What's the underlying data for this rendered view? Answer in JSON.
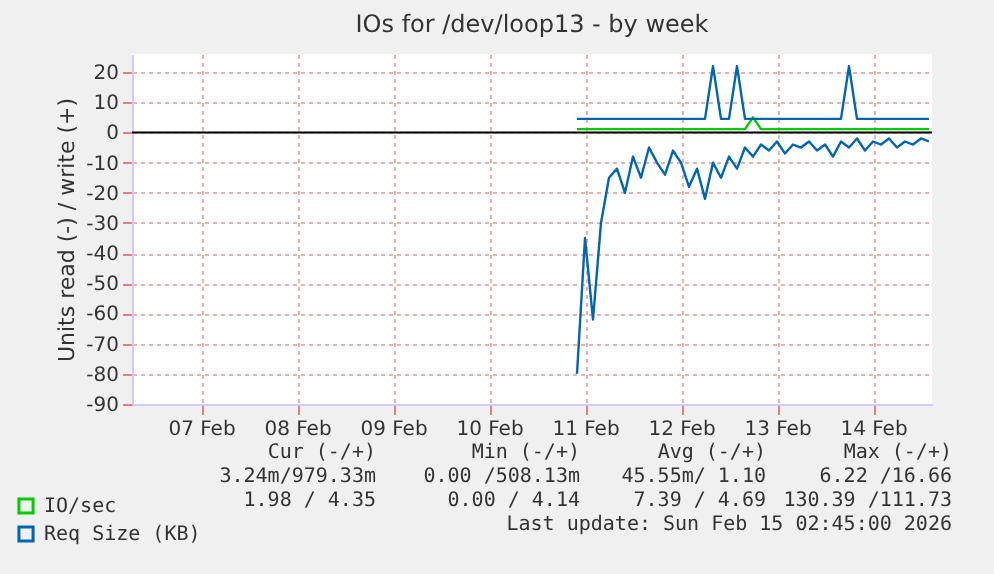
{
  "chart_data": {
    "type": "line",
    "title": "IOs for /dev/loop13 - by week",
    "ylabel": "Units read (-) / write (+)",
    "x": [
      "2026-02-11T10:00",
      "2026-02-11T12:00",
      "2026-02-11T14:00",
      "2026-02-11T16:00",
      "2026-02-11T18:00",
      "2026-02-11T20:00",
      "2026-02-11T22:00",
      "2026-02-12T00:00",
      "2026-02-12T02:00",
      "2026-02-12T04:00",
      "2026-02-12T06:00",
      "2026-02-12T08:00",
      "2026-02-12T10:00",
      "2026-02-12T12:00",
      "2026-02-12T14:00",
      "2026-02-12T16:00",
      "2026-02-12T18:00",
      "2026-02-12T20:00",
      "2026-02-12T22:00",
      "2026-02-13T00:00",
      "2026-02-13T02:00",
      "2026-02-13T04:00",
      "2026-02-13T06:00",
      "2026-02-13T08:00",
      "2026-02-13T10:00",
      "2026-02-13T12:00",
      "2026-02-13T14:00",
      "2026-02-13T16:00",
      "2026-02-13T18:00",
      "2026-02-13T20:00",
      "2026-02-13T22:00",
      "2026-02-14T00:00",
      "2026-02-14T02:00",
      "2026-02-14T04:00",
      "2026-02-14T06:00",
      "2026-02-14T08:00",
      "2026-02-14T10:00",
      "2026-02-14T12:00",
      "2026-02-14T14:00",
      "2026-02-14T16:00",
      "2026-02-14T18:00",
      "2026-02-14T20:00",
      "2026-02-14T22:00",
      "2026-02-15T00:00",
      "2026-02-15T02:00"
    ],
    "series": [
      {
        "name": "IO/sec",
        "color": "#00cc00",
        "values": [
          1.1,
          1.1,
          1.1,
          1.1,
          1.1,
          1.1,
          1.1,
          1.1,
          1.1,
          1.1,
          1.1,
          1.1,
          1.1,
          1.1,
          1.1,
          1.1,
          1.1,
          1.1,
          1.1,
          1.1,
          1.1,
          1.1,
          5,
          1.1,
          1.1,
          1.1,
          1.1,
          1.1,
          1.1,
          1.1,
          1.1,
          1.1,
          1.1,
          1.1,
          1.1,
          1.1,
          1.1,
          1.1,
          1.1,
          1.1,
          1.1,
          1.1,
          1.1,
          1.1,
          1.1
        ]
      },
      {
        "name": "Req Size (KB)",
        "color": "#0066b3",
        "values": [
          4.5,
          4.5,
          4.5,
          4.5,
          4.5,
          4.5,
          4.5,
          4.5,
          4.5,
          4.5,
          4.5,
          4.5,
          4.5,
          4.5,
          4.5,
          4.5,
          4.5,
          22,
          4.5,
          4.5,
          22,
          4.5,
          4.5,
          4.5,
          4.5,
          4.5,
          4.5,
          4.5,
          4.5,
          4.5,
          4.5,
          4.5,
          4.5,
          4.5,
          22,
          4.5,
          4.5,
          4.5,
          4.5,
          4.5,
          4.5,
          4.5,
          4.5,
          4.5,
          4.5
        ]
      },
      {
        "color": "#0066b3",
        "values": [
          -80,
          -35,
          -62,
          -30,
          -15,
          -12,
          -20,
          -8,
          -15,
          -5,
          -10,
          -14,
          -6,
          -10,
          -18,
          -12,
          -22,
          -10,
          -15,
          -8,
          -12,
          -5,
          -8,
          -4,
          -6,
          -3,
          -7,
          -4,
          -5,
          -3,
          -6,
          -4,
          -8,
          -3,
          -5,
          -2,
          -6,
          -3,
          -4,
          -2,
          -5,
          -3,
          -4,
          -2,
          -3
        ]
      }
    ],
    "xlim": [
      "2026-02-06T18:45",
      "2026-02-15T02:45"
    ],
    "xticks": [
      {
        "value": "2026-02-07T12:00",
        "label": "07 Feb"
      },
      {
        "value": "2026-02-08T12:00",
        "label": "08 Feb"
      },
      {
        "value": "2026-02-09T12:00",
        "label": "09 Feb"
      },
      {
        "value": "2026-02-10T12:00",
        "label": "10 Feb"
      },
      {
        "value": "2026-02-11T12:00",
        "label": "11 Feb"
      },
      {
        "value": "2026-02-12T12:00",
        "label": "12 Feb"
      },
      {
        "value": "2026-02-13T12:00",
        "label": "13 Feb"
      },
      {
        "value": "2026-02-14T12:00",
        "label": "14 Feb"
      }
    ],
    "ylim": [
      -90,
      26
    ],
    "yticks": [
      -90,
      -80,
      -70,
      -60,
      -50,
      -40,
      -30,
      -20,
      -10,
      0,
      10,
      20
    ],
    "grid": true,
    "legend": "bottom left",
    "ref_lines": [
      {
        "axis": "y",
        "value": 0,
        "color": "#000000"
      }
    ],
    "annotations": [
      "Cur (-/+)",
      "Min (-/+)",
      "Avg (-/+)",
      "Max (-/+)",
      "3.24m/979.33m",
      "0.00 /508.13m",
      "45.55m/ 1.10",
      "6.22 /16.66",
      "1.98 / 4.35",
      "0.00 / 4.14",
      "7.39 / 4.69",
      "130.39 /111.73",
      "Last update: Sun Feb 15 02:45:00 2026"
    ]
  }
}
